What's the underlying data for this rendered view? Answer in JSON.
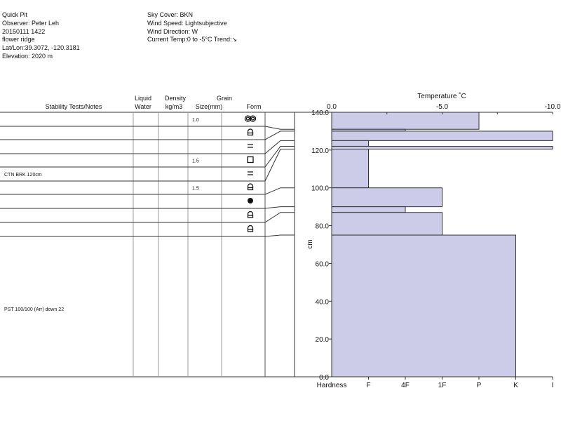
{
  "header_left": [
    "Quick Pit",
    "Observer: Peter Leh",
    "20150111 1422",
    "flower ridge",
    "Lat/Lon:39.3072, -120.3181",
    "Elevation: 2020 m"
  ],
  "header_right": [
    "Sky Cover: BKN",
    "Wind Speed: Lightsubjective",
    "Wind Direction: W",
    "Current Temp:0 to -5°C Trend:↘"
  ],
  "table": {
    "columns": [
      "Stability Tests/Notes",
      "Liquid\nWater",
      "Density\nkg/m3",
      "Grain\nSize(mm)",
      "Form"
    ],
    "col_liquid": [
      "Liquid",
      "Water"
    ],
    "col_density": [
      "Density",
      "kg/m3"
    ],
    "col_grain": [
      "Grain",
      "Size(mm)"
    ],
    "col_notes": "Stability Tests/Notes",
    "col_form": "Form",
    "rows": [
      {
        "note": "",
        "grain": "1.0",
        "form": "rounded-polycrystals"
      },
      {
        "note": "",
        "grain": "",
        "form": "faceted-rounded"
      },
      {
        "note": "",
        "grain": "",
        "form": "surface-hoar-crust"
      },
      {
        "note": "",
        "grain": "1.5",
        "form": "faceted"
      },
      {
        "note": "CTN BRK 120cm",
        "grain": "",
        "form": "surface-hoar-crust"
      },
      {
        "note": "",
        "grain": "1.5",
        "form": "faceted-rounded"
      },
      {
        "note": "",
        "grain": "",
        "form": "ice-formation"
      },
      {
        "note": "",
        "grain": "",
        "form": "faceted-rounded"
      },
      {
        "note": "",
        "grain": "",
        "form": "faceted-rounded"
      },
      {
        "note": "PST 100/100 (Arr) down 22",
        "grain": "",
        "form": ""
      }
    ]
  },
  "chart_data": {
    "type": "bar",
    "title": "Temperature ˚C",
    "xlabel": "Hardness",
    "ylabel": "cm",
    "ylim": [
      0,
      140
    ],
    "temp_range": [
      0,
      -10
    ],
    "temp_ticks": [
      "0.0",
      "-5.0",
      "-10.0"
    ],
    "y_ticks": [
      "0.0",
      "20.0",
      "40.0",
      "60.0",
      "80.0",
      "100.0",
      "120.0",
      "140.0"
    ],
    "hardness_ticks": [
      "F",
      "4F",
      "1F",
      "P",
      "K",
      "I"
    ],
    "layers": [
      {
        "top": 140,
        "bottom": 131,
        "hardness": "P",
        "hardness_index": 4
      },
      {
        "top": 131,
        "bottom": 130,
        "hardness": "4F",
        "hardness_index": 2
      },
      {
        "top": 130,
        "bottom": 125,
        "hardness": "I",
        "hardness_index": 6
      },
      {
        "top": 125,
        "bottom": 122,
        "hardness": "F",
        "hardness_index": 1
      },
      {
        "top": 122,
        "bottom": 120.5,
        "hardness": "I",
        "hardness_index": 6
      },
      {
        "top": 120.5,
        "bottom": 100,
        "hardness": "F",
        "hardness_index": 1
      },
      {
        "top": 100,
        "bottom": 90,
        "hardness": "1F",
        "hardness_index": 3
      },
      {
        "top": 90,
        "bottom": 87,
        "hardness": "4F",
        "hardness_index": 2
      },
      {
        "top": 87,
        "bottom": 75,
        "hardness": "1F",
        "hardness_index": 3
      },
      {
        "top": 75,
        "bottom": 0,
        "hardness": "K",
        "hardness_index": 5
      }
    ],
    "colors": {
      "fill": "#cccbe8",
      "stroke": "#333333"
    }
  }
}
